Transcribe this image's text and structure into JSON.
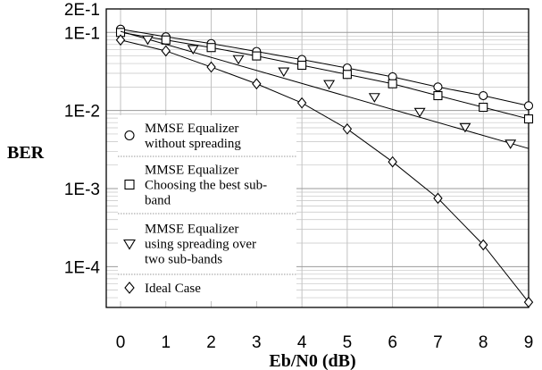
{
  "chart_data": {
    "type": "line",
    "xlabel": "Eb/N0 (dB)",
    "ylabel": "BER",
    "x_scale": "linear",
    "y_scale": "log",
    "xlim": [
      0,
      9
    ],
    "ylim": [
      3e-05,
      0.2
    ],
    "x_ticks": [
      "0",
      "1",
      "2",
      "3",
      "4",
      "5",
      "6",
      "7",
      "8",
      "9"
    ],
    "y_ticks": [
      {
        "value": 0.2,
        "label": "2E-1"
      },
      {
        "value": 0.1,
        "label": "1E-1"
      },
      {
        "value": 0.01,
        "label": "1E-2"
      },
      {
        "value": 0.001,
        "label": "1E-3"
      },
      {
        "value": 0.0001,
        "label": "1E-4"
      }
    ],
    "grid": true,
    "legend_position": "left",
    "series": [
      {
        "name": "MMSE Equalizer without spreading",
        "legend_lines": [
          "MMSE Equalizer",
          "without spreading"
        ],
        "marker": "circle",
        "x": [
          0,
          1,
          2,
          3,
          4,
          5,
          6,
          7,
          8,
          9
        ],
        "y": [
          0.11,
          0.088,
          0.072,
          0.057,
          0.045,
          0.035,
          0.027,
          0.02,
          0.0155,
          0.0115
        ]
      },
      {
        "name": "MMSE Equalizer Choosing the best sub-band",
        "legend_lines": [
          "MMSE Equalizer",
          "Choosing the best sub-",
          "band"
        ],
        "marker": "square",
        "x": [
          0,
          1,
          2,
          3,
          4,
          5,
          6,
          7,
          8,
          9
        ],
        "y": [
          0.1,
          0.08,
          0.064,
          0.05,
          0.038,
          0.029,
          0.022,
          0.0155,
          0.011,
          0.0078
        ]
      },
      {
        "name": "MMSE Equalizer using spreading over two sub-bands",
        "legend_lines": [
          "MMSE Equalizer",
          "using spreading over",
          "two sub-bands"
        ],
        "marker": "triangle-down",
        "x": [
          0.6,
          1.6,
          2.6,
          3.6,
          4.6,
          5.6,
          6.6,
          7.6,
          8.6
        ],
        "y": [
          0.082,
          0.062,
          0.046,
          0.032,
          0.022,
          0.015,
          0.0097,
          0.0062,
          0.0038
        ]
      },
      {
        "name": "Ideal Case",
        "legend_lines": [
          "Ideal Case"
        ],
        "marker": "diamond",
        "x": [
          0,
          1,
          2,
          3,
          4,
          5,
          6,
          7,
          8,
          9
        ],
        "y": [
          0.08,
          0.058,
          0.036,
          0.022,
          0.0125,
          0.0058,
          0.0022,
          0.00075,
          0.00019,
          3.5e-05
        ]
      }
    ]
  }
}
